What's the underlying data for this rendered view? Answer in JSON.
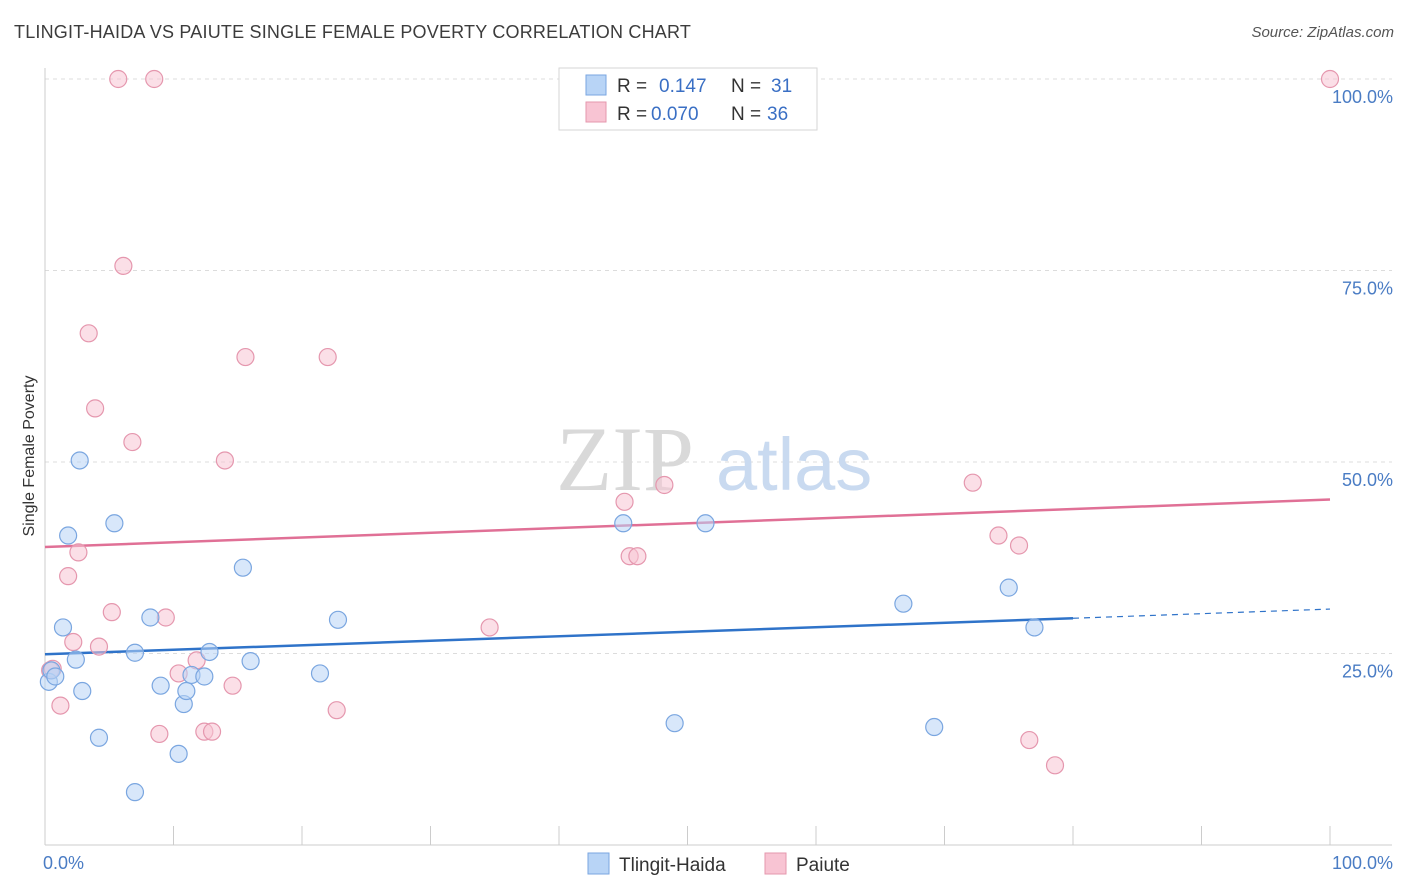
{
  "title": "TLINGIT-HAIDA VS PAIUTE SINGLE FEMALE POVERTY CORRELATION CHART",
  "source": "Source: ZipAtlas.com",
  "watermark": {
    "zip": "ZIP",
    "atlas": "atlas"
  },
  "legend_top": [
    {
      "r_label": "R =",
      "r_value": "0.147",
      "n_label": "N =",
      "n_value": "31",
      "fill": "#b8d4f6",
      "stroke": "#7aa6e0"
    },
    {
      "r_label": "R =",
      "r_value": "0.070",
      "n_label": "N =",
      "n_value": "36",
      "fill": "#f8c4d3",
      "stroke": "#e597ae"
    }
  ],
  "bottom_legend": [
    {
      "label": "Tlingit-Haida",
      "fill": "#b8d4f6",
      "stroke": "#7aa6e0"
    },
    {
      "label": "Paiute",
      "fill": "#f8c4d3",
      "stroke": "#e597ae"
    }
  ],
  "chart_data": {
    "type": "scatter",
    "title": "TLINGIT-HAIDA VS PAIUTE SINGLE FEMALE POVERTY CORRELATION CHART",
    "xlabel": "",
    "ylabel": "Single Female Poverty",
    "xlim": [
      0,
      100
    ],
    "ylim": [
      0,
      100
    ],
    "x_tick_labels": [
      "0.0%",
      "100.0%"
    ],
    "y_tick_labels": [
      {
        "value": 25,
        "label": "25.0%"
      },
      {
        "value": 50,
        "label": "50.0%"
      },
      {
        "value": 75,
        "label": "75.0%"
      },
      {
        "value": 100,
        "label": "100.0%"
      }
    ],
    "grid": "horizontal dashed",
    "legend_placement": "top-center",
    "series": [
      {
        "name": "Tlingit-Haida",
        "color": "#7aa6e0",
        "fill": "#b8d4f6",
        "line_color": "#2f73c9",
        "trend": {
          "x0": 0,
          "y0": 24.9,
          "x1": 80,
          "y1": 29.6,
          "dash_to_x": 100,
          "dash_to_y": 30.8
        },
        "points": [
          [
            0.3,
            21.3
          ],
          [
            0.5,
            22.8
          ],
          [
            0.8,
            22.0
          ],
          [
            1.4,
            28.4
          ],
          [
            1.8,
            40.4
          ],
          [
            2.4,
            24.2
          ],
          [
            2.7,
            50.2
          ],
          [
            2.9,
            20.1
          ],
          [
            4.2,
            14.0
          ],
          [
            5.4,
            42.0
          ],
          [
            7.0,
            6.9
          ],
          [
            7.0,
            25.1
          ],
          [
            8.2,
            29.7
          ],
          [
            9.0,
            20.8
          ],
          [
            10.4,
            11.9
          ],
          [
            10.8,
            18.4
          ],
          [
            11.0,
            20.1
          ],
          [
            11.4,
            22.2
          ],
          [
            12.4,
            22.0
          ],
          [
            12.8,
            25.2
          ],
          [
            15.4,
            36.2
          ],
          [
            16.0,
            24.0
          ],
          [
            21.4,
            22.4
          ],
          [
            22.8,
            29.4
          ],
          [
            45.0,
            42.0
          ],
          [
            49.0,
            15.9
          ],
          [
            51.4,
            42.0
          ],
          [
            66.8,
            31.5
          ],
          [
            69.2,
            15.4
          ],
          [
            75.0,
            33.6
          ],
          [
            77.0,
            28.4
          ]
        ]
      },
      {
        "name": "Paiute",
        "color": "#e597ae",
        "fill": "#f8c4d3",
        "line_color": "#e07096",
        "trend": {
          "x0": 0,
          "y0": 38.9,
          "x1": 100,
          "y1": 45.1
        },
        "points": [
          [
            0.4,
            22.8
          ],
          [
            0.6,
            23.0
          ],
          [
            1.2,
            18.2
          ],
          [
            1.8,
            35.1
          ],
          [
            2.2,
            26.5
          ],
          [
            2.6,
            38.2
          ],
          [
            3.4,
            66.8
          ],
          [
            3.9,
            57.0
          ],
          [
            4.2,
            25.9
          ],
          [
            5.2,
            30.4
          ],
          [
            5.7,
            100
          ],
          [
            6.1,
            75.6
          ],
          [
            6.8,
            52.6
          ],
          [
            8.5,
            100
          ],
          [
            8.9,
            14.5
          ],
          [
            9.4,
            29.7
          ],
          [
            10.4,
            22.4
          ],
          [
            11.8,
            24.1
          ],
          [
            12.4,
            14.8
          ],
          [
            13.0,
            14.8
          ],
          [
            14.0,
            50.2
          ],
          [
            14.6,
            20.8
          ],
          [
            15.6,
            63.7
          ],
          [
            22.0,
            63.7
          ],
          [
            22.7,
            17.6
          ],
          [
            34.6,
            28.4
          ],
          [
            45.1,
            44.8
          ],
          [
            45.5,
            37.7
          ],
          [
            46.1,
            37.7
          ],
          [
            48.2,
            47.0
          ],
          [
            72.2,
            47.3
          ],
          [
            74.2,
            40.4
          ],
          [
            75.8,
            39.1
          ],
          [
            76.6,
            13.7
          ],
          [
            78.6,
            10.4
          ],
          [
            100,
            100
          ]
        ]
      }
    ]
  }
}
